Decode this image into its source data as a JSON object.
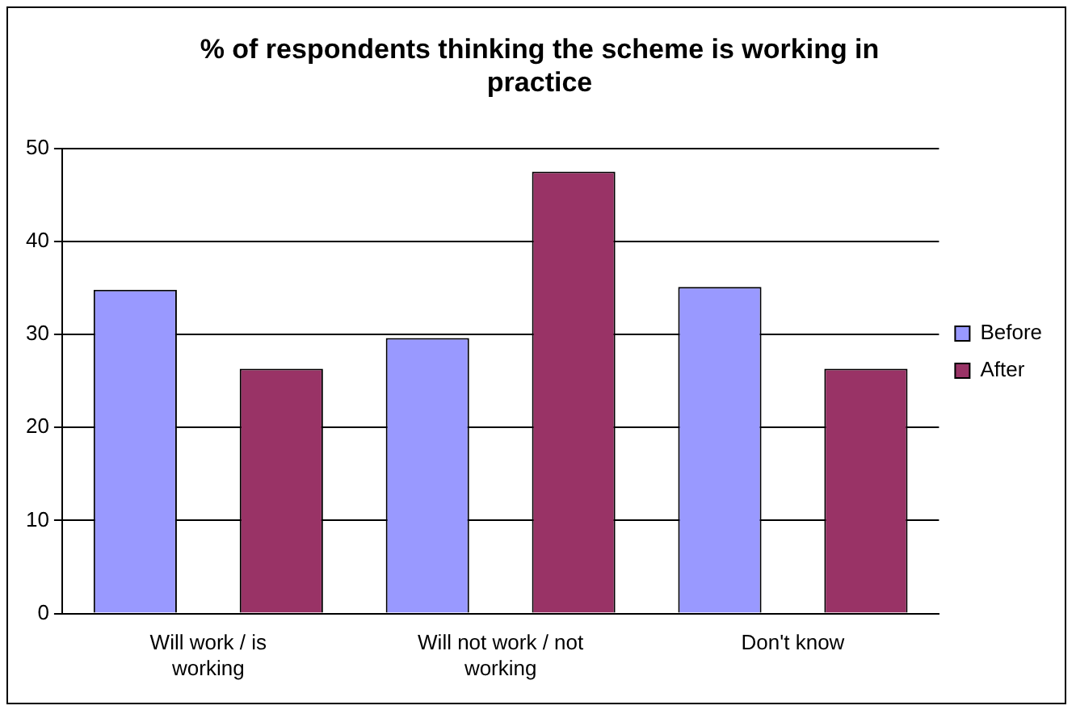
{
  "chart_data": {
    "type": "bar",
    "title": "% of respondents thinking the scheme is working in practice",
    "categories": [
      "Will work / is working",
      "Will not work / not working",
      "Don't know"
    ],
    "series": [
      {
        "name": "Before",
        "color": "#9999ff",
        "values": [
          34.8,
          29.6,
          35.1
        ]
      },
      {
        "name": "After",
        "color": "#993366",
        "values": [
          26.3,
          47.5,
          26.3
        ]
      }
    ],
    "ylim": [
      0,
      50
    ],
    "yticks": [
      0,
      10,
      20,
      30,
      40,
      50
    ],
    "grid": "y",
    "legend": "right"
  }
}
